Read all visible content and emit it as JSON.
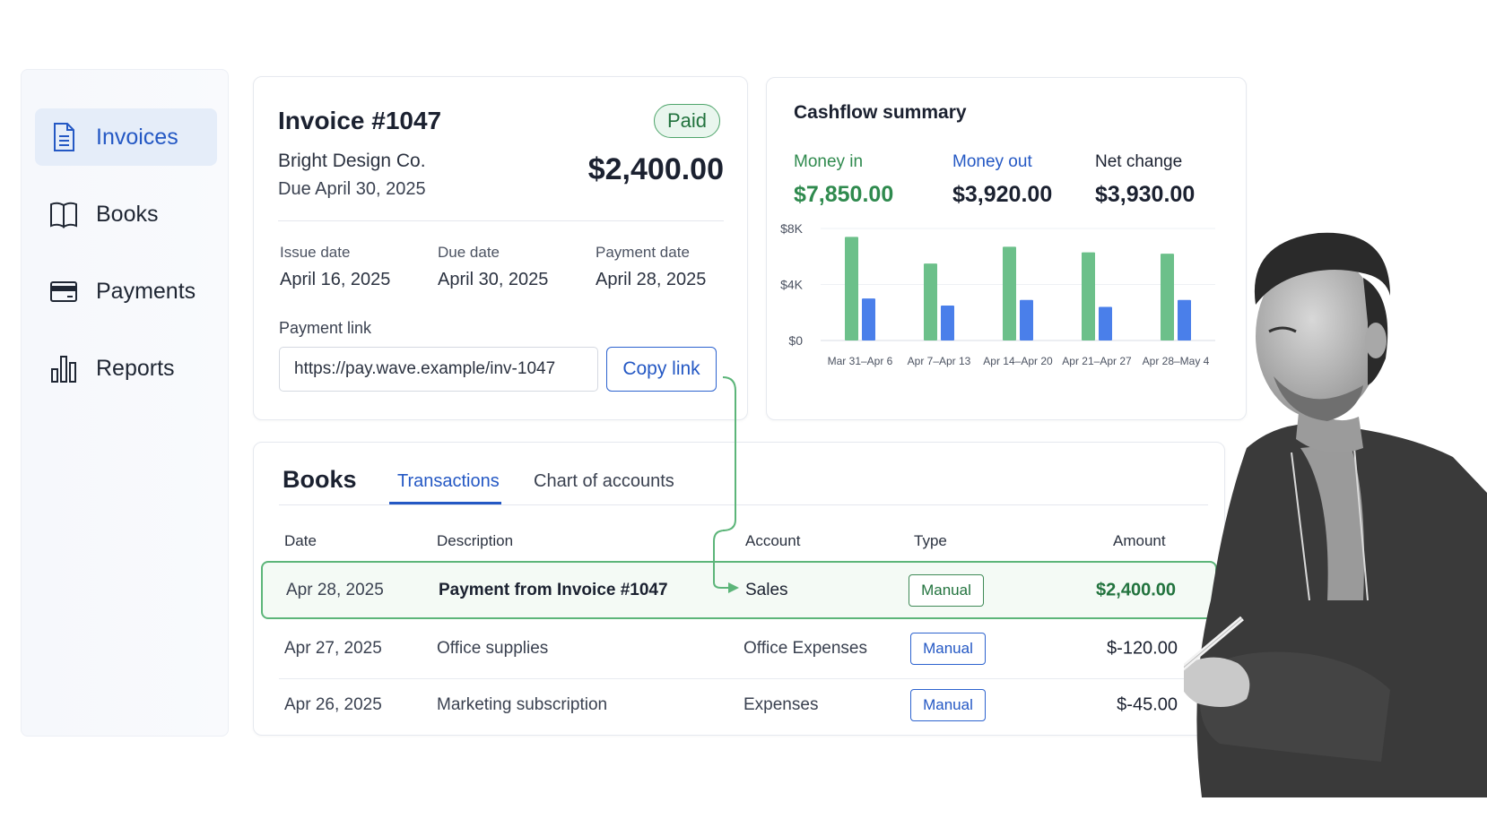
{
  "sidebar": {
    "items": [
      {
        "label": "Invoices",
        "icon": "document-icon",
        "active": true
      },
      {
        "label": "Books",
        "icon": "book-icon",
        "active": false
      },
      {
        "label": "Payments",
        "icon": "card-icon",
        "active": false
      },
      {
        "label": "Reports",
        "icon": "bar-chart-icon",
        "active": false
      }
    ]
  },
  "invoice": {
    "title": "Invoice #1047",
    "status": "Paid",
    "client": "Bright Design Co.",
    "due_line": "Due April 30, 2025",
    "amount": "$2,400.00",
    "issue_label": "Issue date",
    "issue_value": "April 16, 2025",
    "due_label": "Due date",
    "due_value": "April 30, 2025",
    "payment_label": "Payment date",
    "payment_value": "April 28, 2025",
    "link_label": "Payment link",
    "link_value": "https://pay.wave.example/inv-1047",
    "copy_label": "Copy link"
  },
  "cashflow": {
    "title": "Cashflow summary",
    "money_in_label": "Money in",
    "money_in_value": "$7,850.00",
    "money_out_label": "Money out",
    "money_out_value": "$3,920.00",
    "net_label": "Net change",
    "net_value": "$3,930.00",
    "colors": {
      "in": "#6cc08a",
      "out": "#4a7fea",
      "in_text": "#2f8a4e",
      "out_text": "#2458c4"
    }
  },
  "chart_data": {
    "type": "bar",
    "categories": [
      "Mar 31–Apr 6",
      "Apr 7–Apr 13",
      "Apr 14–Apr 20",
      "Apr 21–Apr 27",
      "Apr 28–May 4"
    ],
    "series": [
      {
        "values": [
          7400,
          5500,
          6700,
          6300,
          6200
        ]
      },
      {
        "values": [
          3000,
          2500,
          2900,
          2400,
          2900
        ]
      }
    ],
    "yticks": [
      "$8K",
      "$4K",
      "$0"
    ],
    "ylim": [
      0,
      8000
    ],
    "grid": true
  },
  "books": {
    "title": "Books",
    "tabs": [
      {
        "label": "Transactions",
        "active": true
      },
      {
        "label": "Chart of accounts",
        "active": false
      }
    ],
    "headers": {
      "date": "Date",
      "description": "Description",
      "account": "Account",
      "type": "Type",
      "amount": "Amount"
    },
    "rows": [
      {
        "date": "Apr 28, 2025",
        "description": "Payment from Invoice #1047",
        "account": "Sales",
        "type": "Manual",
        "amount": "$2,400.00"
      },
      {
        "date": "Apr 27, 2025",
        "description": "Office supplies",
        "account": "Office Expenses",
        "type": "Manual",
        "amount": "$-120.00"
      },
      {
        "date": "Apr 26, 2025",
        "description": "Marketing subscription",
        "account": "Expenses",
        "type": "Manual",
        "amount": "$-45.00"
      }
    ]
  }
}
